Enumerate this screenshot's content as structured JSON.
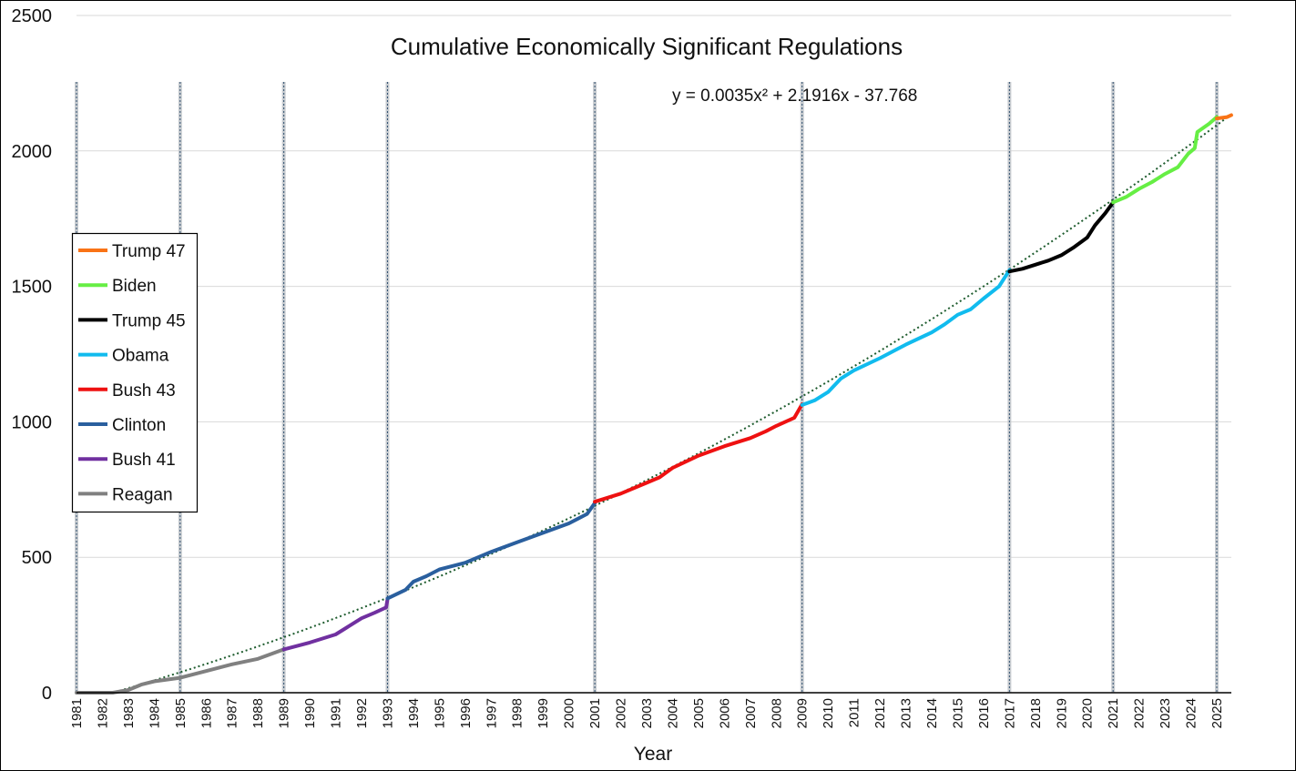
{
  "chart_data": {
    "type": "line",
    "title": "Cumulative Economically Significant Regulations",
    "xlabel": "Year",
    "ylabel": "",
    "xlim": [
      1981,
      2025.56
    ],
    "ylim": [
      0,
      2500
    ],
    "yticks": [
      0,
      500,
      1000,
      1500,
      2000,
      2500
    ],
    "xticks": [
      "1981",
      "1982",
      "1983",
      "1984",
      "1985",
      "1986",
      "1987",
      "1988",
      "1989",
      "1990",
      "1991",
      "1992",
      "1993",
      "1994",
      "1995",
      "1996",
      "1997",
      "1998",
      "1999",
      "2000",
      "2001",
      "2002",
      "2003",
      "2004",
      "2005",
      "2006",
      "2007",
      "2008",
      "2009",
      "2010",
      "2011",
      "2012",
      "2013",
      "2014",
      "2015",
      "2016",
      "2017",
      "2018",
      "2019",
      "2020",
      "2021",
      "2022",
      "2023",
      "2024",
      "2025"
    ],
    "grid": "horizontal",
    "term_lines": [
      1981,
      1985,
      1989,
      1993,
      2001,
      2009,
      2017,
      2021,
      2025
    ],
    "trendline": {
      "label": "y = 0.0035x² + 2.1916x - 37.768",
      "a": 0.0035,
      "b": 2.1916,
      "c": -37.768,
      "x_unit": "months since Jan 1981",
      "color": "#1e5c2e"
    },
    "legend_position": "left",
    "series": [
      {
        "name": "Trump 47",
        "color": "#f97316",
        "points": [
          [
            2025,
            2120
          ],
          [
            2025.4,
            2125
          ],
          [
            2025.56,
            2132
          ]
        ]
      },
      {
        "name": "Biden",
        "color": "#66ee44",
        "points": [
          [
            2021,
            1810
          ],
          [
            2021.5,
            1830
          ],
          [
            2022,
            1860
          ],
          [
            2022.5,
            1885
          ],
          [
            2023,
            1915
          ],
          [
            2023.5,
            1940
          ],
          [
            2023.9,
            1990
          ],
          [
            2024.15,
            2010
          ],
          [
            2024.25,
            2070
          ],
          [
            2024.7,
            2100
          ],
          [
            2025,
            2125
          ]
        ]
      },
      {
        "name": "Trump 45",
        "color": "#000000",
        "points": [
          [
            2017,
            1555
          ],
          [
            2017.5,
            1565
          ],
          [
            2018,
            1580
          ],
          [
            2018.5,
            1595
          ],
          [
            2019,
            1615
          ],
          [
            2019.5,
            1645
          ],
          [
            2020,
            1680
          ],
          [
            2020.3,
            1725
          ],
          [
            2020.7,
            1770
          ],
          [
            2021,
            1810
          ]
        ]
      },
      {
        "name": "Obama",
        "color": "#11bbee",
        "points": [
          [
            2009,
            1062
          ],
          [
            2009.5,
            1080
          ],
          [
            2010,
            1110
          ],
          [
            2010.5,
            1160
          ],
          [
            2011,
            1190
          ],
          [
            2012,
            1235
          ],
          [
            2013,
            1285
          ],
          [
            2014,
            1330
          ],
          [
            2014.5,
            1360
          ],
          [
            2015,
            1395
          ],
          [
            2015.5,
            1415
          ],
          [
            2016,
            1455
          ],
          [
            2016.6,
            1500
          ],
          [
            2017,
            1560
          ]
        ]
      },
      {
        "name": "Bush 43",
        "color": "#ee1111",
        "points": [
          [
            2001,
            705
          ],
          [
            2002,
            735
          ],
          [
            2003,
            775
          ],
          [
            2003.5,
            795
          ],
          [
            2004,
            830
          ],
          [
            2005,
            875
          ],
          [
            2006,
            910
          ],
          [
            2007,
            940
          ],
          [
            2007.6,
            965
          ],
          [
            2008,
            985
          ],
          [
            2008.7,
            1015
          ],
          [
            2009,
            1065
          ]
        ]
      },
      {
        "name": "Clinton",
        "color": "#2a5f9e",
        "points": [
          [
            1993,
            348
          ],
          [
            1993.7,
            380
          ],
          [
            1994,
            410
          ],
          [
            1994.5,
            430
          ],
          [
            1995,
            455
          ],
          [
            1996,
            480
          ],
          [
            1997,
            520
          ],
          [
            1998,
            555
          ],
          [
            1999,
            590
          ],
          [
            2000,
            625
          ],
          [
            2000.7,
            660
          ],
          [
            2001,
            700
          ]
        ]
      },
      {
        "name": "Bush 41",
        "color": "#7030a0",
        "points": [
          [
            1989,
            160
          ],
          [
            1990,
            185
          ],
          [
            1991,
            215
          ],
          [
            1991.5,
            245
          ],
          [
            1992,
            275
          ],
          [
            1992.5,
            295
          ],
          [
            1992.95,
            315
          ],
          [
            1993,
            345
          ]
        ]
      },
      {
        "name": "Reagan",
        "color": "#808080",
        "points": [
          [
            1981,
            0
          ],
          [
            1982.4,
            0
          ],
          [
            1983,
            10
          ],
          [
            1983.5,
            30
          ],
          [
            1984,
            42
          ],
          [
            1985,
            55
          ],
          [
            1986,
            80
          ],
          [
            1987,
            105
          ],
          [
            1988,
            125
          ],
          [
            1989,
            160
          ]
        ]
      }
    ]
  }
}
